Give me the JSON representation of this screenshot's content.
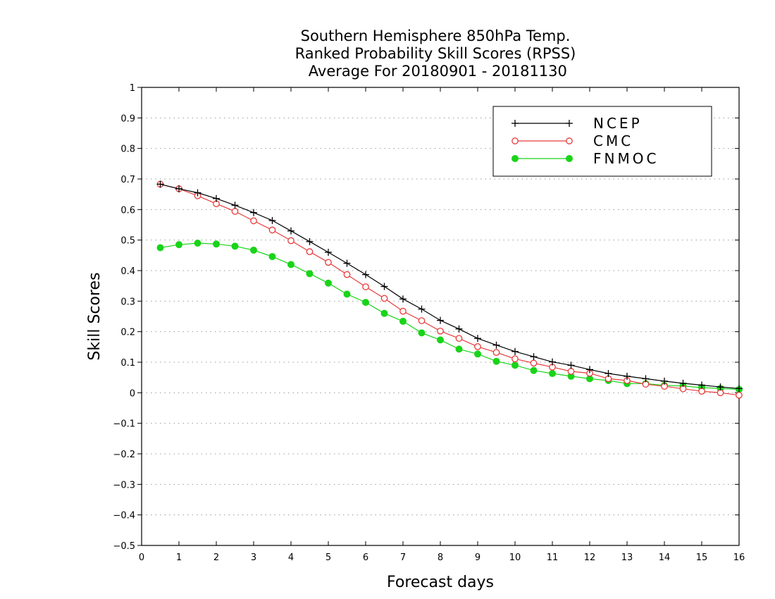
{
  "chart_data": {
    "type": "line",
    "title_lines": [
      "Southern Hemisphere 850hPa Temp.",
      "Ranked Probability Skill Scores (RPSS)",
      " Average For 20180901 - 20181130"
    ],
    "xlabel": "Forecast days",
    "ylabel": "Skill Scores",
    "xlim": [
      0,
      16
    ],
    "ylim": [
      -0.5,
      1
    ],
    "x_ticks": [
      "0",
      "1",
      "2",
      "3",
      "4",
      "5",
      "6",
      "7",
      "8",
      "9",
      "10",
      "11",
      "12",
      "13",
      "14",
      "15",
      "16"
    ],
    "y_ticks": [
      "−0.5",
      "−0.4",
      "−0.3",
      "−0.2",
      "−0.1",
      "0",
      "0.1",
      "0.2",
      "0.3",
      "0.4",
      "0.5",
      "0.6",
      "0.7",
      "0.8",
      "0.9",
      "1"
    ],
    "grid": true,
    "legend_position": "top-right",
    "x": [
      0.5,
      1,
      1.5,
      2,
      2.5,
      3,
      3.5,
      4,
      4.5,
      5,
      5.5,
      6,
      6.5,
      7,
      7.5,
      8,
      8.5,
      9,
      9.5,
      10,
      10.5,
      11,
      11.5,
      12,
      12.5,
      13,
      13.5,
      14,
      14.5,
      15,
      15.5,
      16
    ],
    "series": [
      {
        "name": "NCEP",
        "color": "#000000",
        "marker": "plus",
        "values": [
          0.683,
          0.668,
          0.655,
          0.636,
          0.614,
          0.59,
          0.564,
          0.53,
          0.495,
          0.46,
          0.424,
          0.387,
          0.348,
          0.307,
          0.274,
          0.237,
          0.209,
          0.178,
          0.156,
          0.135,
          0.118,
          0.101,
          0.09,
          0.076,
          0.063,
          0.054,
          0.046,
          0.038,
          0.031,
          0.025,
          0.019,
          0.014
        ]
      },
      {
        "name": "CMC",
        "color": "#e83a3a",
        "marker": "open-circle",
        "values": [
          0.683,
          0.668,
          0.645,
          0.619,
          0.594,
          0.563,
          0.533,
          0.498,
          0.462,
          0.427,
          0.387,
          0.347,
          0.309,
          0.267,
          0.236,
          0.202,
          0.178,
          0.151,
          0.132,
          0.111,
          0.097,
          0.084,
          0.07,
          0.064,
          0.046,
          0.04,
          0.028,
          0.021,
          0.013,
          0.005,
          0.0,
          -0.008
        ]
      },
      {
        "name": "FNMOC",
        "color": "#19d419",
        "marker": "filled-circle",
        "values": [
          0.475,
          0.485,
          0.49,
          0.487,
          0.48,
          0.467,
          0.446,
          0.42,
          0.39,
          0.359,
          0.323,
          0.296,
          0.26,
          0.234,
          0.196,
          0.173,
          0.143,
          0.127,
          0.103,
          0.09,
          0.073,
          0.063,
          0.054,
          0.046,
          0.04,
          0.03,
          0.03,
          0.024,
          0.022,
          0.017,
          0.014,
          0.011
        ]
      }
    ]
  }
}
